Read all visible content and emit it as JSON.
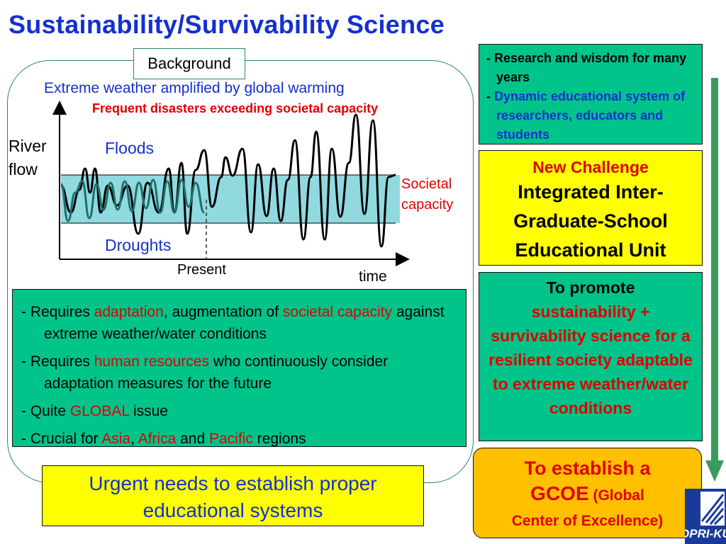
{
  "title": "Sustainability/Survivability Science",
  "background_label": "Background",
  "chart": {
    "caption_blue": "Extreme weather amplified by global warming",
    "caption_red": "Frequent disasters exceeding societal capacity",
    "y_label_line1": "River",
    "y_label_line2": "flow",
    "floods_label": "Floods",
    "droughts_label": "Droughts",
    "band_label_line1": "Societal",
    "band_label_line2": "capacity",
    "present_label": "Present",
    "x_label": "time"
  },
  "requirements": {
    "items": [
      {
        "segments": [
          {
            "text": "- Requires ",
            "color": "#000000"
          },
          {
            "text": "adaptation",
            "color": "#e00000"
          },
          {
            "text": ", augmentation of ",
            "color": "#000000"
          },
          {
            "text": "societal capacity",
            "color": "#e00000"
          },
          {
            "text": " against extreme weather/water conditions",
            "color": "#000000"
          }
        ]
      },
      {
        "segments": [
          {
            "text": "- Requires ",
            "color": "#000000"
          },
          {
            "text": "human resources",
            "color": "#e00000"
          },
          {
            "text": " who continuously consider adaptation measures for the future",
            "color": "#000000"
          }
        ]
      },
      {
        "segments": [
          {
            "text": "- Quite ",
            "color": "#000000"
          },
          {
            "text": "GLOBAL",
            "color": "#e00000"
          },
          {
            "text": " issue",
            "color": "#000000"
          }
        ]
      },
      {
        "segments": [
          {
            "text": "- Crucial for ",
            "color": "#000000"
          },
          {
            "text": "Asia",
            "color": "#e00000"
          },
          {
            "text": ", ",
            "color": "#000000"
          },
          {
            "text": "Africa",
            "color": "#e00000"
          },
          {
            "text": " and ",
            "color": "#000000"
          },
          {
            "text": "Pacific",
            "color": "#e00000"
          },
          {
            "text": " regions",
            "color": "#000000"
          }
        ]
      }
    ]
  },
  "urgent_needs": "Urgent needs to establish proper educational systems",
  "research_box": {
    "line1": "- Research and wisdom for many years",
    "line2_prefix": "- ",
    "line2_rest": "Dynamic educational system of researchers, educators and students"
  },
  "new_challenge": {
    "heading": "New Challenge",
    "body": "Integrated Inter-Graduate-School Educational Unit"
  },
  "promote": {
    "heading": "To promote",
    "body": "sustainability + survivability science for a resilient society adaptable to extreme weather/water conditions"
  },
  "gcoe": {
    "line1": "To establish a",
    "line2_big": "GCOE",
    "line2_small": " (Global",
    "line3": "Center of Excellence)"
  },
  "logo_text": "DPRI-KU",
  "colors": {
    "title_blue": "#1530d0",
    "accent_red": "#e00000",
    "green_box": "#00c48a",
    "yellow_box": "#ffff00",
    "orange_box": "#ffc000",
    "band_cyan": "#90d9df",
    "arrow_green": "#3a9a5a"
  }
}
